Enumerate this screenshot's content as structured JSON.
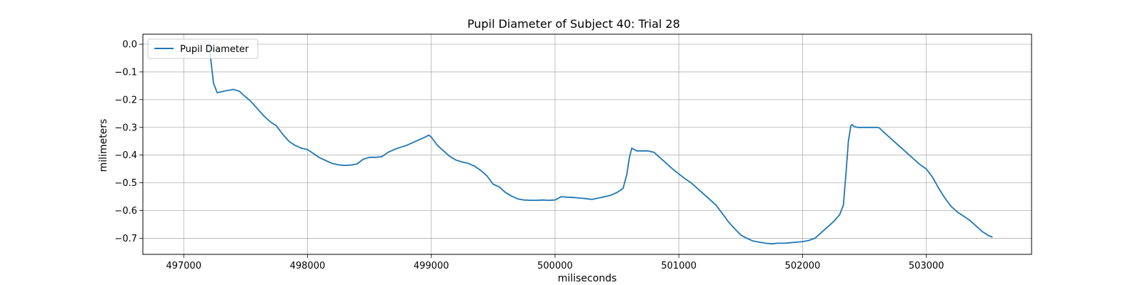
{
  "chart_data": {
    "type": "line",
    "title": "Pupil Diameter of Subject 40: Trial 28",
    "xlabel": "miliseconds",
    "ylabel": "milimeters",
    "xlim": [
      496670,
      503850
    ],
    "ylim": [
      -0.758,
      0.036
    ],
    "xticks": [
      497000,
      498000,
      499000,
      500000,
      501000,
      502000,
      503000
    ],
    "xtick_labels": [
      "497000",
      "498000",
      "499000",
      "500000",
      "501000",
      "502000",
      "503000"
    ],
    "yticks": [
      0.0,
      -0.1,
      -0.2,
      -0.3,
      -0.4,
      -0.5,
      -0.6,
      -0.7
    ],
    "ytick_labels": [
      "0.0",
      "−0.1",
      "−0.2",
      "−0.3",
      "−0.4",
      "−0.5",
      "−0.6",
      "−0.7"
    ],
    "grid": true,
    "legend": {
      "position": "upper-left",
      "entries": [
        "Pupil Diameter"
      ]
    },
    "series": [
      {
        "name": "Pupil Diameter",
        "color": "#1f77b4",
        "x": [
          497200,
          497220,
          497240,
          497270,
          497300,
          497340,
          497380,
          497400,
          497450,
          497500,
          497540,
          497600,
          497650,
          497700,
          497750,
          497800,
          497850,
          497900,
          497950,
          498000,
          498050,
          498100,
          498150,
          498200,
          498250,
          498300,
          498350,
          498400,
          498450,
          498500,
          498550,
          498600,
          498650,
          498700,
          498750,
          498800,
          498850,
          498900,
          498950,
          498980,
          499000,
          499050,
          499100,
          499150,
          499200,
          499250,
          499300,
          499350,
          499400,
          499450,
          499500,
          499550,
          499600,
          499650,
          499700,
          499750,
          499800,
          499850,
          499900,
          499950,
          500000,
          500050,
          500100,
          500150,
          500200,
          500250,
          500300,
          500350,
          500400,
          500450,
          500500,
          500550,
          500580,
          500600,
          500620,
          500640,
          500660,
          500700,
          500750,
          500800,
          500850,
          500900,
          500950,
          501000,
          501050,
          501100,
          501150,
          501200,
          501250,
          501300,
          501350,
          501400,
          501450,
          501500,
          501550,
          501600,
          501650,
          501700,
          501750,
          501800,
          501850,
          501900,
          501950,
          502000,
          502050,
          502100,
          502150,
          502200,
          502250,
          502300,
          502330,
          502350,
          502370,
          502390,
          502400,
          502420,
          502450,
          502500,
          502550,
          502600,
          502620,
          502650,
          502700,
          502750,
          502800,
          502850,
          502900,
          502950,
          503000,
          503050,
          503100,
          503150,
          503200,
          503250,
          503300,
          503350,
          503400,
          503450,
          503500,
          503530
        ],
        "y": [
          0.0,
          -0.06,
          -0.14,
          -0.175,
          -0.172,
          -0.168,
          -0.165,
          -0.163,
          -0.17,
          -0.19,
          -0.205,
          -0.235,
          -0.26,
          -0.28,
          -0.295,
          -0.325,
          -0.35,
          -0.365,
          -0.375,
          -0.38,
          -0.395,
          -0.41,
          -0.42,
          -0.43,
          -0.435,
          -0.437,
          -0.436,
          -0.432,
          -0.415,
          -0.408,
          -0.408,
          -0.406,
          -0.39,
          -0.38,
          -0.372,
          -0.365,
          -0.355,
          -0.345,
          -0.335,
          -0.328,
          -0.335,
          -0.365,
          -0.385,
          -0.405,
          -0.418,
          -0.425,
          -0.43,
          -0.44,
          -0.455,
          -0.475,
          -0.505,
          -0.515,
          -0.535,
          -0.548,
          -0.558,
          -0.562,
          -0.563,
          -0.563,
          -0.562,
          -0.563,
          -0.562,
          -0.55,
          -0.552,
          -0.553,
          -0.555,
          -0.557,
          -0.56,
          -0.555,
          -0.55,
          -0.545,
          -0.535,
          -0.52,
          -0.47,
          -0.41,
          -0.375,
          -0.38,
          -0.385,
          -0.385,
          -0.385,
          -0.39,
          -0.41,
          -0.43,
          -0.45,
          -0.468,
          -0.485,
          -0.5,
          -0.52,
          -0.54,
          -0.56,
          -0.58,
          -0.61,
          -0.64,
          -0.665,
          -0.688,
          -0.7,
          -0.71,
          -0.714,
          -0.718,
          -0.72,
          -0.718,
          -0.718,
          -0.716,
          -0.714,
          -0.712,
          -0.708,
          -0.7,
          -0.68,
          -0.66,
          -0.64,
          -0.615,
          -0.58,
          -0.47,
          -0.35,
          -0.295,
          -0.29,
          -0.298,
          -0.3,
          -0.3,
          -0.3,
          -0.3,
          -0.302,
          -0.315,
          -0.335,
          -0.355,
          -0.375,
          -0.395,
          -0.415,
          -0.435,
          -0.45,
          -0.48,
          -0.52,
          -0.555,
          -0.585,
          -0.605,
          -0.62,
          -0.635,
          -0.655,
          -0.675,
          -0.69,
          -0.695
        ]
      }
    ]
  }
}
